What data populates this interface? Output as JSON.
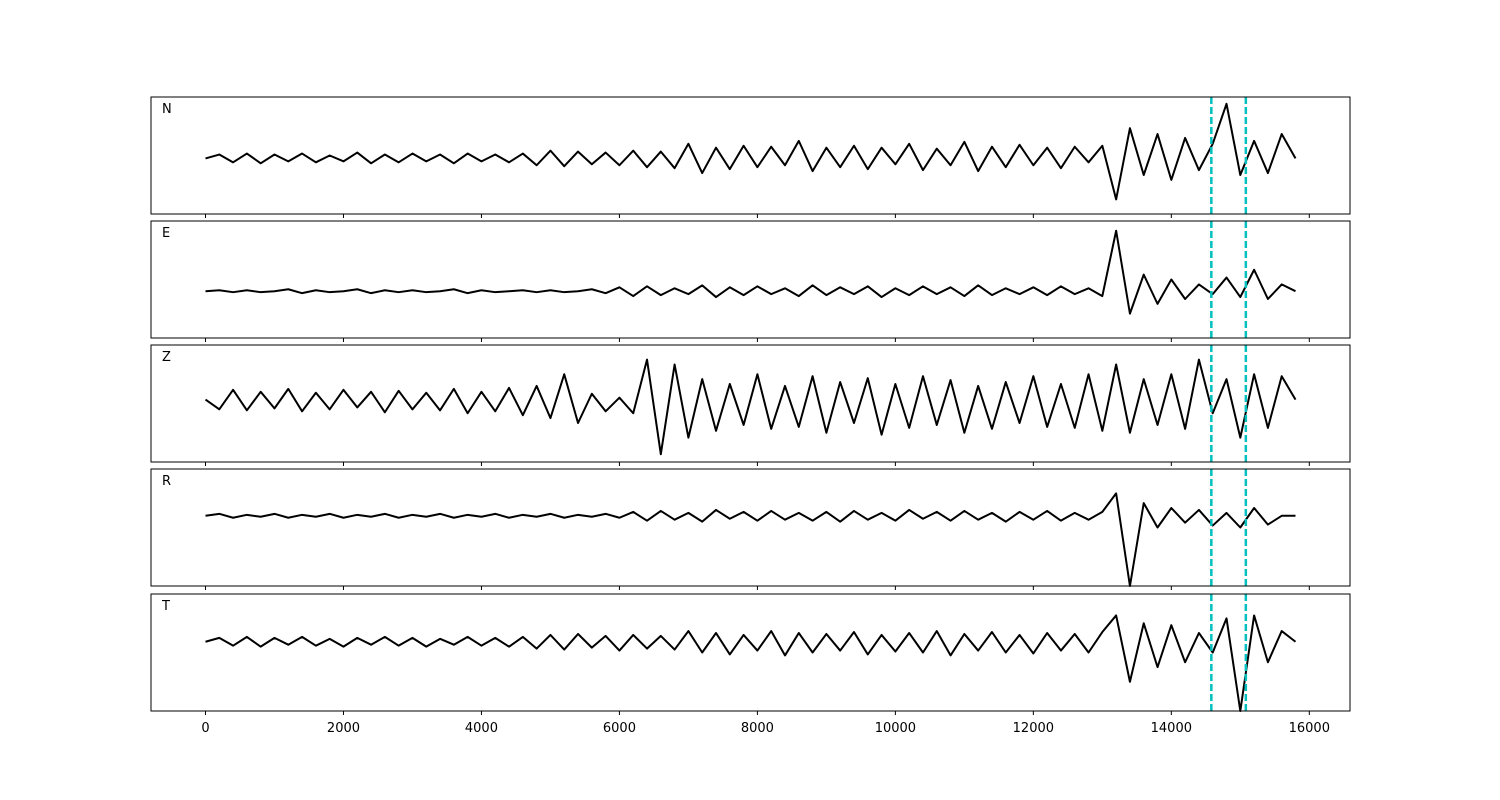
{
  "chart_data": {
    "type": "line",
    "x": [
      0,
      200,
      400,
      600,
      800,
      1000,
      1200,
      1400,
      1600,
      1800,
      2000,
      2200,
      2400,
      2600,
      2800,
      3000,
      3200,
      3400,
      3600,
      3800,
      4000,
      4200,
      4400,
      4600,
      4800,
      5000,
      5200,
      5400,
      5600,
      5800,
      6000,
      6200,
      6400,
      6600,
      6800,
      7000,
      7200,
      7400,
      7600,
      7800,
      8000,
      8200,
      8400,
      8600,
      8800,
      9000,
      9200,
      9400,
      9600,
      9800,
      10000,
      10200,
      10400,
      10600,
      10800,
      11000,
      11200,
      11400,
      11600,
      11800,
      12000,
      12200,
      12400,
      12600,
      12800,
      13000,
      13200,
      13400,
      13600,
      13800,
      14000,
      14200,
      14400,
      14600,
      14800,
      15000,
      15200,
      15400,
      15600,
      15800
    ],
    "xlim": [
      -790,
      16590
    ],
    "xticks": [
      0,
      2000,
      4000,
      6000,
      8000,
      10000,
      12000,
      14000,
      16000
    ],
    "ylim": [
      -60,
      60
    ],
    "series": [
      {
        "name": "N",
        "color": "#000000",
        "values": [
          -3,
          1,
          -7,
          2,
          -8,
          1,
          -6,
          2,
          -7,
          0,
          -6,
          3,
          -8,
          1,
          -7,
          2,
          -6,
          1,
          -8,
          2,
          -6,
          1,
          -7,
          2,
          -10,
          5,
          -11,
          4,
          -9,
          3,
          -10,
          5,
          -12,
          4,
          -13,
          12,
          -18,
          8,
          -14,
          10,
          -12,
          9,
          -10,
          15,
          -16,
          8,
          -12,
          10,
          -14,
          8,
          -9,
          12,
          -15,
          7,
          -10,
          14,
          -16,
          9,
          -12,
          11,
          -10,
          8,
          -13,
          9,
          -7,
          10,
          -45,
          28,
          -20,
          22,
          -25,
          18,
          -15,
          12,
          53,
          -20,
          15,
          -18,
          22,
          -3
        ]
      },
      {
        "name": "E",
        "color": "#000000",
        "values": [
          -12,
          -11,
          -13,
          -11,
          -13,
          -12,
          -10,
          -14,
          -11,
          -13,
          -12,
          -10,
          -14,
          -11,
          -13,
          -11,
          -13,
          -12,
          -10,
          -14,
          -11,
          -13,
          -12,
          -11,
          -13,
          -11,
          -13,
          -12,
          -10,
          -14,
          -8,
          -17,
          -7,
          -16,
          -9,
          -15,
          -6,
          -18,
          -8,
          -16,
          -7,
          -15,
          -9,
          -17,
          -6,
          -16,
          -8,
          -15,
          -7,
          -18,
          -9,
          -16,
          -7,
          -15,
          -8,
          -17,
          -6,
          -16,
          -9,
          -15,
          -8,
          -16,
          -7,
          -15,
          -9,
          -17,
          50,
          -35,
          5,
          -25,
          0,
          -20,
          -5,
          -15,
          2,
          -18,
          10,
          -20,
          -5,
          -12
        ]
      },
      {
        "name": "Z",
        "color": "#000000",
        "values": [
          4,
          -6,
          14,
          -7,
          12,
          -5,
          15,
          -8,
          11,
          -6,
          14,
          -4,
          12,
          -9,
          13,
          -6,
          11,
          -7,
          15,
          -10,
          12,
          -8,
          16,
          -12,
          18,
          -15,
          30,
          -20,
          10,
          -8,
          6,
          -10,
          45,
          -52,
          40,
          -35,
          25,
          -28,
          20,
          -22,
          30,
          -26,
          18,
          -24,
          28,
          -30,
          22,
          -20,
          26,
          -32,
          20,
          -25,
          28,
          -22,
          24,
          -30,
          18,
          -26,
          22,
          -20,
          28,
          -24,
          20,
          -25,
          30,
          -28,
          40,
          -30,
          25,
          -22,
          30,
          -26,
          45,
          -10,
          25,
          -35,
          30,
          -25,
          28,
          4
        ]
      },
      {
        "name": "R",
        "color": "#000000",
        "values": [
          12,
          14,
          10,
          13,
          11,
          14,
          10,
          13,
          11,
          14,
          10,
          13,
          11,
          14,
          10,
          13,
          11,
          14,
          10,
          13,
          11,
          14,
          10,
          13,
          11,
          14,
          10,
          13,
          11,
          14,
          10,
          16,
          7,
          17,
          8,
          15,
          6,
          18,
          9,
          16,
          7,
          17,
          8,
          15,
          7,
          16,
          6,
          17,
          8,
          15,
          7,
          18,
          9,
          16,
          7,
          17,
          8,
          15,
          6,
          16,
          8,
          17,
          7,
          15,
          8,
          16,
          35,
          -60,
          25,
          0,
          20,
          5,
          18,
          2,
          15,
          0,
          20,
          3,
          12,
          12
        ]
      },
      {
        "name": "T",
        "color": "#000000",
        "values": [
          11,
          15,
          7,
          16,
          6,
          15,
          8,
          16,
          7,
          14,
          6,
          15,
          8,
          16,
          7,
          15,
          6,
          14,
          8,
          16,
          7,
          15,
          6,
          16,
          4,
          18,
          3,
          19,
          5,
          17,
          2,
          18,
          4,
          17,
          3,
          22,
          0,
          20,
          -2,
          18,
          2,
          22,
          -3,
          20,
          0,
          19,
          2,
          21,
          -2,
          18,
          1,
          20,
          0,
          22,
          -3,
          19,
          2,
          21,
          0,
          18,
          -1,
          20,
          2,
          19,
          0,
          21,
          38,
          -30,
          30,
          -15,
          28,
          -10,
          20,
          0,
          35,
          -60,
          38,
          -10,
          22,
          11
        ]
      }
    ],
    "vlines": {
      "values": [
        14580,
        15080
      ],
      "color": "#00bfbf",
      "style": "dashed"
    }
  }
}
